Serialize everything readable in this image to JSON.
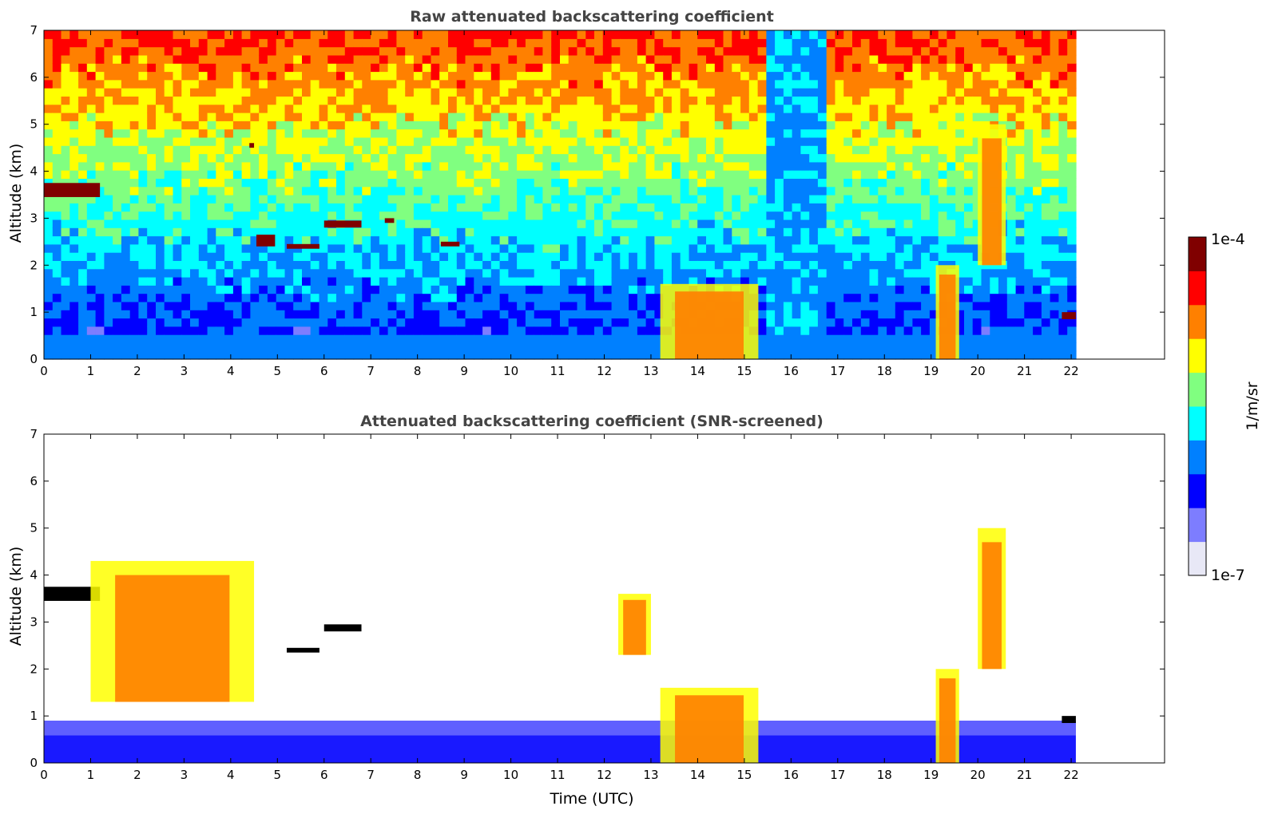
{
  "chart_data": [
    {
      "type": "heatmap",
      "title": "Raw attenuated backscattering coefficient",
      "xlabel": "",
      "ylabel": "Altitude (km)",
      "xlim": [
        0,
        24
      ],
      "ylim": [
        0,
        7
      ],
      "xticks": [
        "0",
        "1",
        "2",
        "3",
        "4",
        "5",
        "6",
        "7",
        "8",
        "9",
        "10",
        "11",
        "12",
        "13",
        "14",
        "15",
        "16",
        "17",
        "18",
        "19",
        "20",
        "21",
        "22"
      ],
      "yticks": [
        "0",
        "1",
        "2",
        "3",
        "4",
        "5",
        "6",
        "7"
      ],
      "data_end_time": 22.1,
      "features": [
        {
          "kind": "cloud-layer",
          "t": [
            0.0,
            1.2
          ],
          "z": [
            3.45,
            3.75
          ],
          "level": "max"
        },
        {
          "kind": "cloud-layer",
          "t": [
            4.55,
            4.95
          ],
          "z": [
            2.4,
            2.65
          ],
          "level": "max"
        },
        {
          "kind": "cloud-layer",
          "t": [
            5.2,
            5.9
          ],
          "z": [
            2.35,
            2.45
          ],
          "level": "max"
        },
        {
          "kind": "cloud-layer",
          "t": [
            6.0,
            6.8
          ],
          "z": [
            2.8,
            2.95
          ],
          "level": "max"
        },
        {
          "kind": "cloud-layer",
          "t": [
            7.3,
            7.5
          ],
          "z": [
            2.9,
            3.0
          ],
          "level": "max"
        },
        {
          "kind": "cloud-layer",
          "t": [
            8.5,
            8.9
          ],
          "z": [
            2.4,
            2.5
          ],
          "level": "max"
        },
        {
          "kind": "cloud-layer",
          "t": [
            4.4,
            4.5
          ],
          "z": [
            4.5,
            4.6
          ],
          "level": "max"
        },
        {
          "kind": "precipitation",
          "t": [
            13.2,
            15.3
          ],
          "z": [
            0.0,
            1.6
          ],
          "level": "high"
        },
        {
          "kind": "precipitation",
          "t": [
            19.1,
            19.6
          ],
          "z": [
            0.0,
            2.0
          ],
          "level": "high"
        },
        {
          "kind": "virga",
          "t": [
            20.0,
            20.6
          ],
          "z": [
            2.0,
            5.0
          ],
          "level": "high"
        },
        {
          "kind": "cloud-layer",
          "t": [
            21.8,
            22.1
          ],
          "z": [
            0.85,
            1.0
          ],
          "level": "max"
        }
      ]
    },
    {
      "type": "heatmap",
      "title": "Attenuated backscattering coefficient (SNR-screened)",
      "xlabel": "Time (UTC)",
      "ylabel": "Altitude (km)",
      "xlim": [
        0,
        24
      ],
      "ylim": [
        0,
        7
      ],
      "xticks": [
        "0",
        "1",
        "2",
        "3",
        "4",
        "5",
        "6",
        "7",
        "8",
        "9",
        "10",
        "11",
        "12",
        "13",
        "14",
        "15",
        "16",
        "17",
        "18",
        "19",
        "20",
        "21",
        "22"
      ],
      "yticks": [
        "0",
        "1",
        "2",
        "3",
        "4",
        "5",
        "6",
        "7"
      ],
      "data_end_time": 22.1,
      "features": [
        {
          "kind": "boundary-layer",
          "t": [
            0.0,
            22.1
          ],
          "z": [
            0.0,
            0.9
          ],
          "level": "low"
        },
        {
          "kind": "cloud-layer",
          "t": [
            0.0,
            1.2
          ],
          "z": [
            3.45,
            3.75
          ],
          "level": "saturated"
        },
        {
          "kind": "aerosol-layer",
          "t": [
            1.0,
            4.5
          ],
          "z": [
            1.3,
            4.3
          ],
          "level": "high"
        },
        {
          "kind": "cloud-layer",
          "t": [
            5.2,
            5.9
          ],
          "z": [
            2.35,
            2.45
          ],
          "level": "saturated"
        },
        {
          "kind": "cloud-layer",
          "t": [
            6.0,
            6.8
          ],
          "z": [
            2.8,
            2.95
          ],
          "level": "saturated"
        },
        {
          "kind": "virga",
          "t": [
            12.3,
            13.0
          ],
          "z": [
            2.3,
            3.6
          ],
          "level": "high"
        },
        {
          "kind": "precipitation",
          "t": [
            13.2,
            15.3
          ],
          "z": [
            0.0,
            1.6
          ],
          "level": "high"
        },
        {
          "kind": "precipitation",
          "t": [
            19.1,
            19.6
          ],
          "z": [
            0.0,
            2.0
          ],
          "level": "high"
        },
        {
          "kind": "virga",
          "t": [
            20.0,
            20.6
          ],
          "z": [
            2.0,
            5.0
          ],
          "level": "high"
        },
        {
          "kind": "cloud-layer",
          "t": [
            21.8,
            22.1
          ],
          "z": [
            0.85,
            1.0
          ],
          "level": "saturated"
        }
      ]
    }
  ],
  "colorbar": {
    "max_label": "1e-4",
    "min_label": "1e-7",
    "unit_label": "1/m/sr",
    "colormap": "jet",
    "colors": [
      "#e8e8f6",
      "#7d7dff",
      "#0000ff",
      "#0080ff",
      "#00ffff",
      "#80ff80",
      "#ffff00",
      "#ff8000",
      "#ff0000",
      "#800000"
    ]
  }
}
